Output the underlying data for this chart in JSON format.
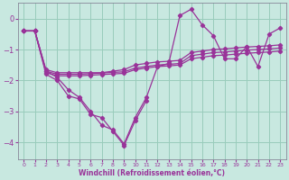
{
  "bg_color": "#c8e8e0",
  "grid_color": "#99ccbb",
  "line_color": "#993399",
  "xlabel": "Windchill (Refroidissement éolien,°C)",
  "xlim": [
    -0.5,
    23.5
  ],
  "ylim": [
    -4.55,
    0.5
  ],
  "yticks": [
    0,
    -1,
    -2,
    -3,
    -4
  ],
  "xticks": [
    0,
    1,
    2,
    3,
    4,
    5,
    6,
    7,
    8,
    9,
    10,
    11,
    12,
    13,
    14,
    15,
    16,
    17,
    18,
    19,
    20,
    21,
    22,
    23
  ],
  "series": [
    [
      -0.4,
      -0.4,
      -1.7,
      -1.9,
      -2.3,
      -2.55,
      -3.0,
      -3.45,
      -3.6,
      -4.05,
      -3.2,
      -2.55,
      -1.55,
      -1.45,
      0.1,
      0.3,
      -0.2,
      -0.55,
      -1.3,
      -1.3,
      -0.9,
      -1.55,
      -0.5,
      -0.3
    ],
    [
      -0.4,
      -0.4,
      -1.8,
      -2.0,
      -2.5,
      -2.6,
      -3.1,
      -3.2,
      -3.65,
      -4.1,
      -3.3,
      -2.65,
      null,
      null,
      null,
      null,
      null,
      null,
      null,
      null,
      null,
      null,
      null,
      null
    ],
    [
      -0.4,
      -0.4,
      -1.65,
      -1.75,
      -1.75,
      -1.75,
      -1.75,
      -1.75,
      -1.7,
      -1.65,
      -1.5,
      -1.45,
      -1.4,
      -1.38,
      -1.35,
      -1.1,
      -1.05,
      -1.0,
      -0.98,
      -0.95,
      -0.92,
      -0.9,
      -0.88,
      -0.85
    ],
    [
      -0.4,
      -0.4,
      -1.7,
      -1.8,
      -1.8,
      -1.8,
      -1.78,
      -1.76,
      -1.74,
      -1.72,
      -1.6,
      -1.55,
      -1.5,
      -1.48,
      -1.45,
      -1.2,
      -1.15,
      -1.1,
      -1.08,
      -1.05,
      -1.02,
      -1.0,
      -0.98,
      -0.95
    ],
    [
      -0.4,
      -0.4,
      -1.75,
      -1.85,
      -1.85,
      -1.85,
      -1.83,
      -1.81,
      -1.79,
      -1.77,
      -1.65,
      -1.6,
      -1.55,
      -1.53,
      -1.5,
      -1.3,
      -1.25,
      -1.2,
      -1.18,
      -1.15,
      -1.12,
      -1.1,
      -1.08,
      -1.05
    ]
  ]
}
